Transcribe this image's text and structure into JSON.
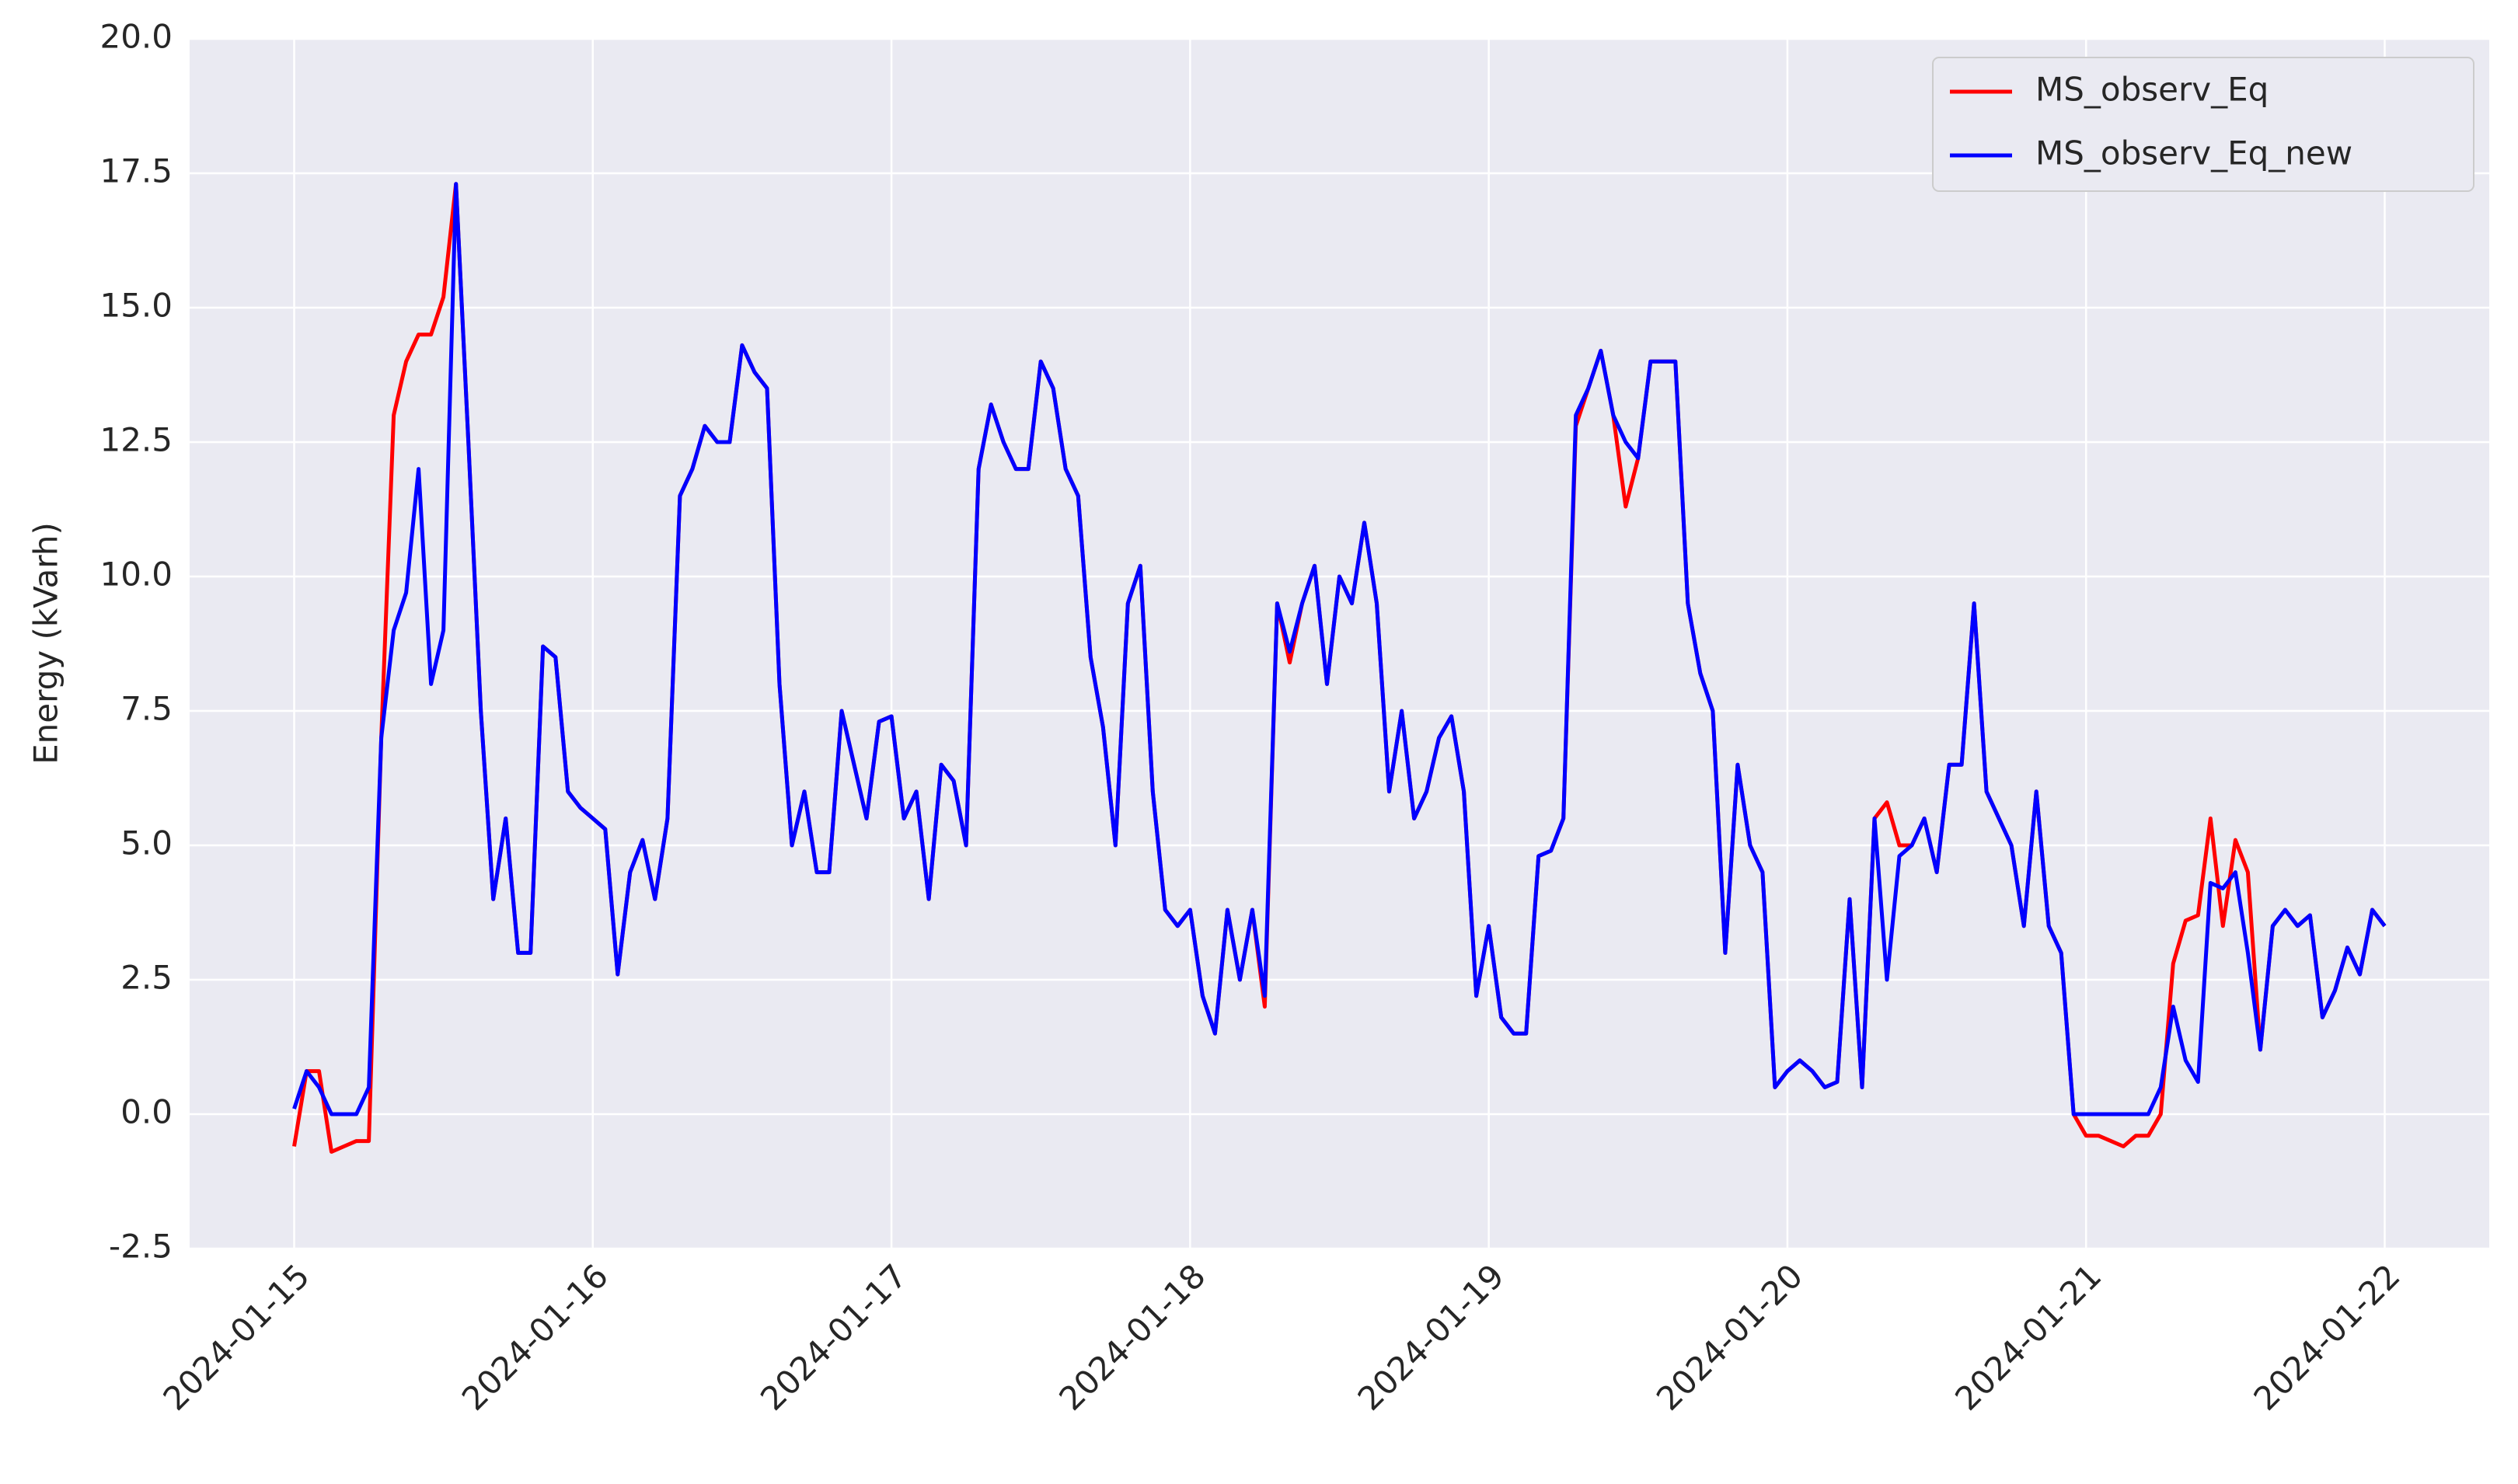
{
  "chart_data": {
    "type": "line",
    "ylabel": "Energy (kVarh)",
    "x": [
      "2024-01-15 00:00",
      "2024-01-15 01:00",
      "2024-01-15 02:00",
      "2024-01-15 03:00",
      "2024-01-15 04:00",
      "2024-01-15 05:00",
      "2024-01-15 06:00",
      "2024-01-15 07:00",
      "2024-01-15 08:00",
      "2024-01-15 09:00",
      "2024-01-15 10:00",
      "2024-01-15 11:00",
      "2024-01-15 12:00",
      "2024-01-15 13:00",
      "2024-01-15 14:00",
      "2024-01-15 15:00",
      "2024-01-15 16:00",
      "2024-01-15 17:00",
      "2024-01-15 18:00",
      "2024-01-15 19:00",
      "2024-01-15 20:00",
      "2024-01-15 21:00",
      "2024-01-15 22:00",
      "2024-01-15 23:00",
      "2024-01-16 00:00",
      "2024-01-16 01:00",
      "2024-01-16 02:00",
      "2024-01-16 03:00",
      "2024-01-16 04:00",
      "2024-01-16 05:00",
      "2024-01-16 06:00",
      "2024-01-16 07:00",
      "2024-01-16 08:00",
      "2024-01-16 09:00",
      "2024-01-16 10:00",
      "2024-01-16 11:00",
      "2024-01-16 12:00",
      "2024-01-16 13:00",
      "2024-01-16 14:00",
      "2024-01-16 15:00",
      "2024-01-16 16:00",
      "2024-01-16 17:00",
      "2024-01-16 18:00",
      "2024-01-16 19:00",
      "2024-01-16 20:00",
      "2024-01-16 21:00",
      "2024-01-16 22:00",
      "2024-01-16 23:00",
      "2024-01-17 00:00",
      "2024-01-17 01:00",
      "2024-01-17 02:00",
      "2024-01-17 03:00",
      "2024-01-17 04:00",
      "2024-01-17 05:00",
      "2024-01-17 06:00",
      "2024-01-17 07:00",
      "2024-01-17 08:00",
      "2024-01-17 09:00",
      "2024-01-17 10:00",
      "2024-01-17 11:00",
      "2024-01-17 12:00",
      "2024-01-17 13:00",
      "2024-01-17 14:00",
      "2024-01-17 15:00",
      "2024-01-17 16:00",
      "2024-01-17 17:00",
      "2024-01-17 18:00",
      "2024-01-17 19:00",
      "2024-01-17 20:00",
      "2024-01-17 21:00",
      "2024-01-17 22:00",
      "2024-01-17 23:00",
      "2024-01-18 00:00",
      "2024-01-18 01:00",
      "2024-01-18 02:00",
      "2024-01-18 03:00",
      "2024-01-18 04:00",
      "2024-01-18 05:00",
      "2024-01-18 06:00",
      "2024-01-18 07:00",
      "2024-01-18 08:00",
      "2024-01-18 09:00",
      "2024-01-18 10:00",
      "2024-01-18 11:00",
      "2024-01-18 12:00",
      "2024-01-18 13:00",
      "2024-01-18 14:00",
      "2024-01-18 15:00",
      "2024-01-18 16:00",
      "2024-01-18 17:00",
      "2024-01-18 18:00",
      "2024-01-18 19:00",
      "2024-01-18 20:00",
      "2024-01-18 21:00",
      "2024-01-18 22:00",
      "2024-01-18 23:00",
      "2024-01-19 00:00",
      "2024-01-19 01:00",
      "2024-01-19 02:00",
      "2024-01-19 03:00",
      "2024-01-19 04:00",
      "2024-01-19 05:00",
      "2024-01-19 06:00",
      "2024-01-19 07:00",
      "2024-01-19 08:00",
      "2024-01-19 09:00",
      "2024-01-19 10:00",
      "2024-01-19 11:00",
      "2024-01-19 12:00",
      "2024-01-19 13:00",
      "2024-01-19 14:00",
      "2024-01-19 15:00",
      "2024-01-19 16:00",
      "2024-01-19 17:00",
      "2024-01-19 18:00",
      "2024-01-19 19:00",
      "2024-01-19 20:00",
      "2024-01-19 21:00",
      "2024-01-19 22:00",
      "2024-01-19 23:00",
      "2024-01-20 00:00",
      "2024-01-20 01:00",
      "2024-01-20 02:00",
      "2024-01-20 03:00",
      "2024-01-20 04:00",
      "2024-01-20 05:00",
      "2024-01-20 06:00",
      "2024-01-20 07:00",
      "2024-01-20 08:00",
      "2024-01-20 09:00",
      "2024-01-20 10:00",
      "2024-01-20 11:00",
      "2024-01-20 12:00",
      "2024-01-20 13:00",
      "2024-01-20 14:00",
      "2024-01-20 15:00",
      "2024-01-20 16:00",
      "2024-01-20 17:00",
      "2024-01-20 18:00",
      "2024-01-20 19:00",
      "2024-01-20 20:00",
      "2024-01-20 21:00",
      "2024-01-20 22:00",
      "2024-01-20 23:00",
      "2024-01-21 00:00",
      "2024-01-21 01:00",
      "2024-01-21 02:00",
      "2024-01-21 03:00",
      "2024-01-21 04:00",
      "2024-01-21 05:00",
      "2024-01-21 06:00",
      "2024-01-21 07:00",
      "2024-01-21 08:00",
      "2024-01-21 09:00",
      "2024-01-21 10:00",
      "2024-01-21 11:00",
      "2024-01-21 12:00",
      "2024-01-21 13:00",
      "2024-01-21 14:00",
      "2024-01-21 15:00",
      "2024-01-21 16:00",
      "2024-01-21 17:00",
      "2024-01-21 18:00",
      "2024-01-21 19:00",
      "2024-01-21 20:00",
      "2024-01-21 21:00",
      "2024-01-21 22:00",
      "2024-01-21 23:00",
      "2024-01-22 00:00"
    ],
    "series": [
      {
        "name": "MS_observ_Eq",
        "color": "#ff0000",
        "values": [
          -0.6,
          0.8,
          0.8,
          -0.7,
          -0.6,
          -0.5,
          -0.5,
          7,
          13,
          14,
          14.5,
          14.5,
          15.2,
          17.3,
          12.5,
          7.5,
          4,
          5.5,
          3,
          3,
          8.7,
          8.5,
          6,
          5.7,
          5.5,
          5.3,
          2.6,
          4.5,
          5.1,
          4,
          5.5,
          11.5,
          12,
          12.8,
          12.5,
          12.5,
          14.3,
          13.8,
          13.5,
          8,
          5,
          6,
          4.5,
          4.5,
          7.5,
          6.5,
          5.5,
          7.3,
          7.4,
          5.5,
          6,
          4,
          6.5,
          6.2,
          5,
          12,
          13.2,
          12.5,
          12,
          12,
          14,
          13.5,
          12,
          11.5,
          8.5,
          7.2,
          5,
          9.5,
          10.2,
          6,
          3.8,
          3.5,
          3.8,
          2.2,
          1.5,
          3.8,
          2.5,
          3.8,
          2,
          9.5,
          8.4,
          9.5,
          10.2,
          8,
          10,
          9.5,
          11,
          9.5,
          6,
          7.5,
          5.5,
          6,
          7,
          7.4,
          6,
          2.2,
          3.5,
          1.8,
          1.5,
          1.5,
          4.8,
          4.9,
          5.5,
          12.8,
          13.5,
          14.2,
          13,
          11.3,
          12.2,
          14,
          14,
          14,
          9.5,
          8.2,
          7.5,
          3,
          6.5,
          5,
          4.5,
          0.5,
          0.8,
          1,
          0.8,
          0.5,
          0.6,
          4,
          0.5,
          5.5,
          5.8,
          5,
          5,
          5.5,
          4.5,
          6.5,
          6.5,
          9.5,
          6,
          5.5,
          5,
          3.5,
          6,
          3.5,
          3,
          0,
          -0.4,
          -0.4,
          -0.5,
          -0.6,
          -0.4,
          -0.4,
          0,
          2.8,
          3.6,
          3.7,
          5.5,
          3.5,
          5.1,
          4.5,
          1.2,
          3.5,
          3.8,
          3.5,
          3.7,
          1.8,
          2.3,
          3.1,
          2.6,
          3.8,
          3.5
        ]
      },
      {
        "name": "MS_observ_Eq_new",
        "color": "#0000ff",
        "values": [
          0.1,
          0.8,
          0.5,
          0,
          0,
          0,
          0.5,
          7,
          9,
          9.7,
          12,
          8,
          9,
          17.3,
          12.5,
          7.5,
          4,
          5.5,
          3,
          3,
          8.7,
          8.5,
          6,
          5.7,
          5.5,
          5.3,
          2.6,
          4.5,
          5.1,
          4,
          5.5,
          11.5,
          12,
          12.8,
          12.5,
          12.5,
          14.3,
          13.8,
          13.5,
          8,
          5,
          6,
          4.5,
          4.5,
          7.5,
          6.5,
          5.5,
          7.3,
          7.4,
          5.5,
          6,
          4,
          6.5,
          6.2,
          5,
          12,
          13.2,
          12.5,
          12,
          12,
          14,
          13.5,
          12,
          11.5,
          8.5,
          7.2,
          5,
          9.5,
          10.2,
          6,
          3.8,
          3.5,
          3.8,
          2.2,
          1.5,
          3.8,
          2.5,
          3.8,
          2.2,
          9.5,
          8.6,
          9.5,
          10.2,
          8,
          10,
          9.5,
          11,
          9.5,
          6,
          7.5,
          5.5,
          6,
          7,
          7.4,
          6,
          2.2,
          3.5,
          1.8,
          1.5,
          1.5,
          4.8,
          4.9,
          5.5,
          13,
          13.5,
          14.2,
          13,
          12.5,
          12.2,
          14,
          14,
          14,
          9.5,
          8.2,
          7.5,
          3,
          6.5,
          5,
          4.5,
          0.5,
          0.8,
          1,
          0.8,
          0.5,
          0.6,
          4,
          0.5,
          5.5,
          2.5,
          4.8,
          5,
          5.5,
          4.5,
          6.5,
          6.5,
          9.5,
          6,
          5.5,
          5,
          3.5,
          6,
          3.5,
          3,
          0,
          0,
          0,
          0,
          0,
          0,
          0,
          0.5,
          2,
          1,
          0.6,
          4.3,
          4.2,
          4.5,
          3,
          1.2,
          3.5,
          3.8,
          3.5,
          3.7,
          1.8,
          2.3,
          3.1,
          2.6,
          3.8,
          3.5
        ]
      }
    ],
    "xlim": [
      "2024-01-14 15:36",
      "2024-01-22 08:24"
    ],
    "xticks": [
      "2024-01-15",
      "2024-01-16",
      "2024-01-17",
      "2024-01-18",
      "2024-01-19",
      "2024-01-20",
      "2024-01-21",
      "2024-01-22"
    ],
    "ylim": [
      -2.5,
      20
    ],
    "yticks": [
      {
        "value": -2.5,
        "label": "-2.5"
      },
      {
        "value": 0,
        "label": "0.0"
      },
      {
        "value": 2.5,
        "label": "2.5"
      },
      {
        "value": 5,
        "label": "5.0"
      },
      {
        "value": 7.5,
        "label": "7.5"
      },
      {
        "value": 10,
        "label": "10.0"
      },
      {
        "value": 12.5,
        "label": "12.5"
      },
      {
        "value": 15,
        "label": "15.0"
      },
      {
        "value": 17.5,
        "label": "17.5"
      },
      {
        "value": 20,
        "label": "20.0"
      }
    ],
    "grid": true,
    "legend": "upper right"
  }
}
